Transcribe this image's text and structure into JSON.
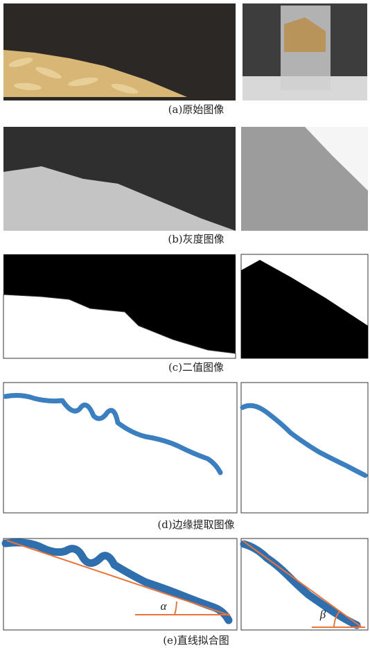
{
  "figure": {
    "panels": [
      {
        "caption": "(a)原始图像"
      },
      {
        "caption": "(b)灰度图像"
      },
      {
        "caption": "(c)二值图像"
      },
      {
        "caption": "(d)边缘提取图像"
      },
      {
        "caption": "(e)直线拟合图"
      }
    ],
    "angle_labels": [
      "α",
      "β"
    ]
  }
}
